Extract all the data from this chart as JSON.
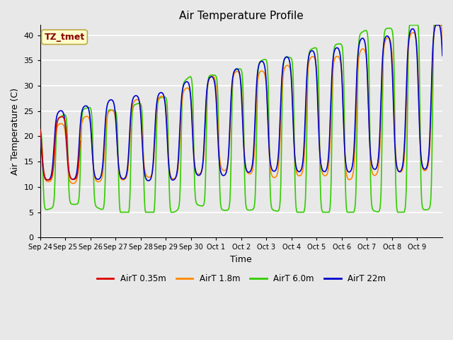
{
  "title": "Air Temperature Profile",
  "xlabel": "Time",
  "ylabel": "Air Temperature (C)",
  "annotation_text": "TZ_tmet",
  "annotation_bg": "#ffffcc",
  "annotation_border": "#bbaa44",
  "annotation_fg": "#880000",
  "ylim": [
    0,
    42
  ],
  "yticks": [
    0,
    5,
    10,
    15,
    20,
    25,
    30,
    35,
    40
  ],
  "bg_color": "#e8e8e8",
  "grid_color": "#ffffff",
  "series_colors": {
    "AirT 0.35m": "#dd0000",
    "AirT 1.8m": "#ff8800",
    "AirT 6.0m": "#33cc00",
    "AirT 22m": "#0000cc"
  },
  "tick_labels": [
    "Sep 24",
    "Sep 25",
    "Sep 26",
    "Sep 27",
    "Sep 28",
    "Sep 29",
    "Sep 30",
    "Oct 1",
    "Oct 2",
    "Oct 3",
    "Oct 4",
    "Oct 5",
    "Oct 6",
    "Oct 7",
    "Oct 8",
    "Oct 9"
  ]
}
